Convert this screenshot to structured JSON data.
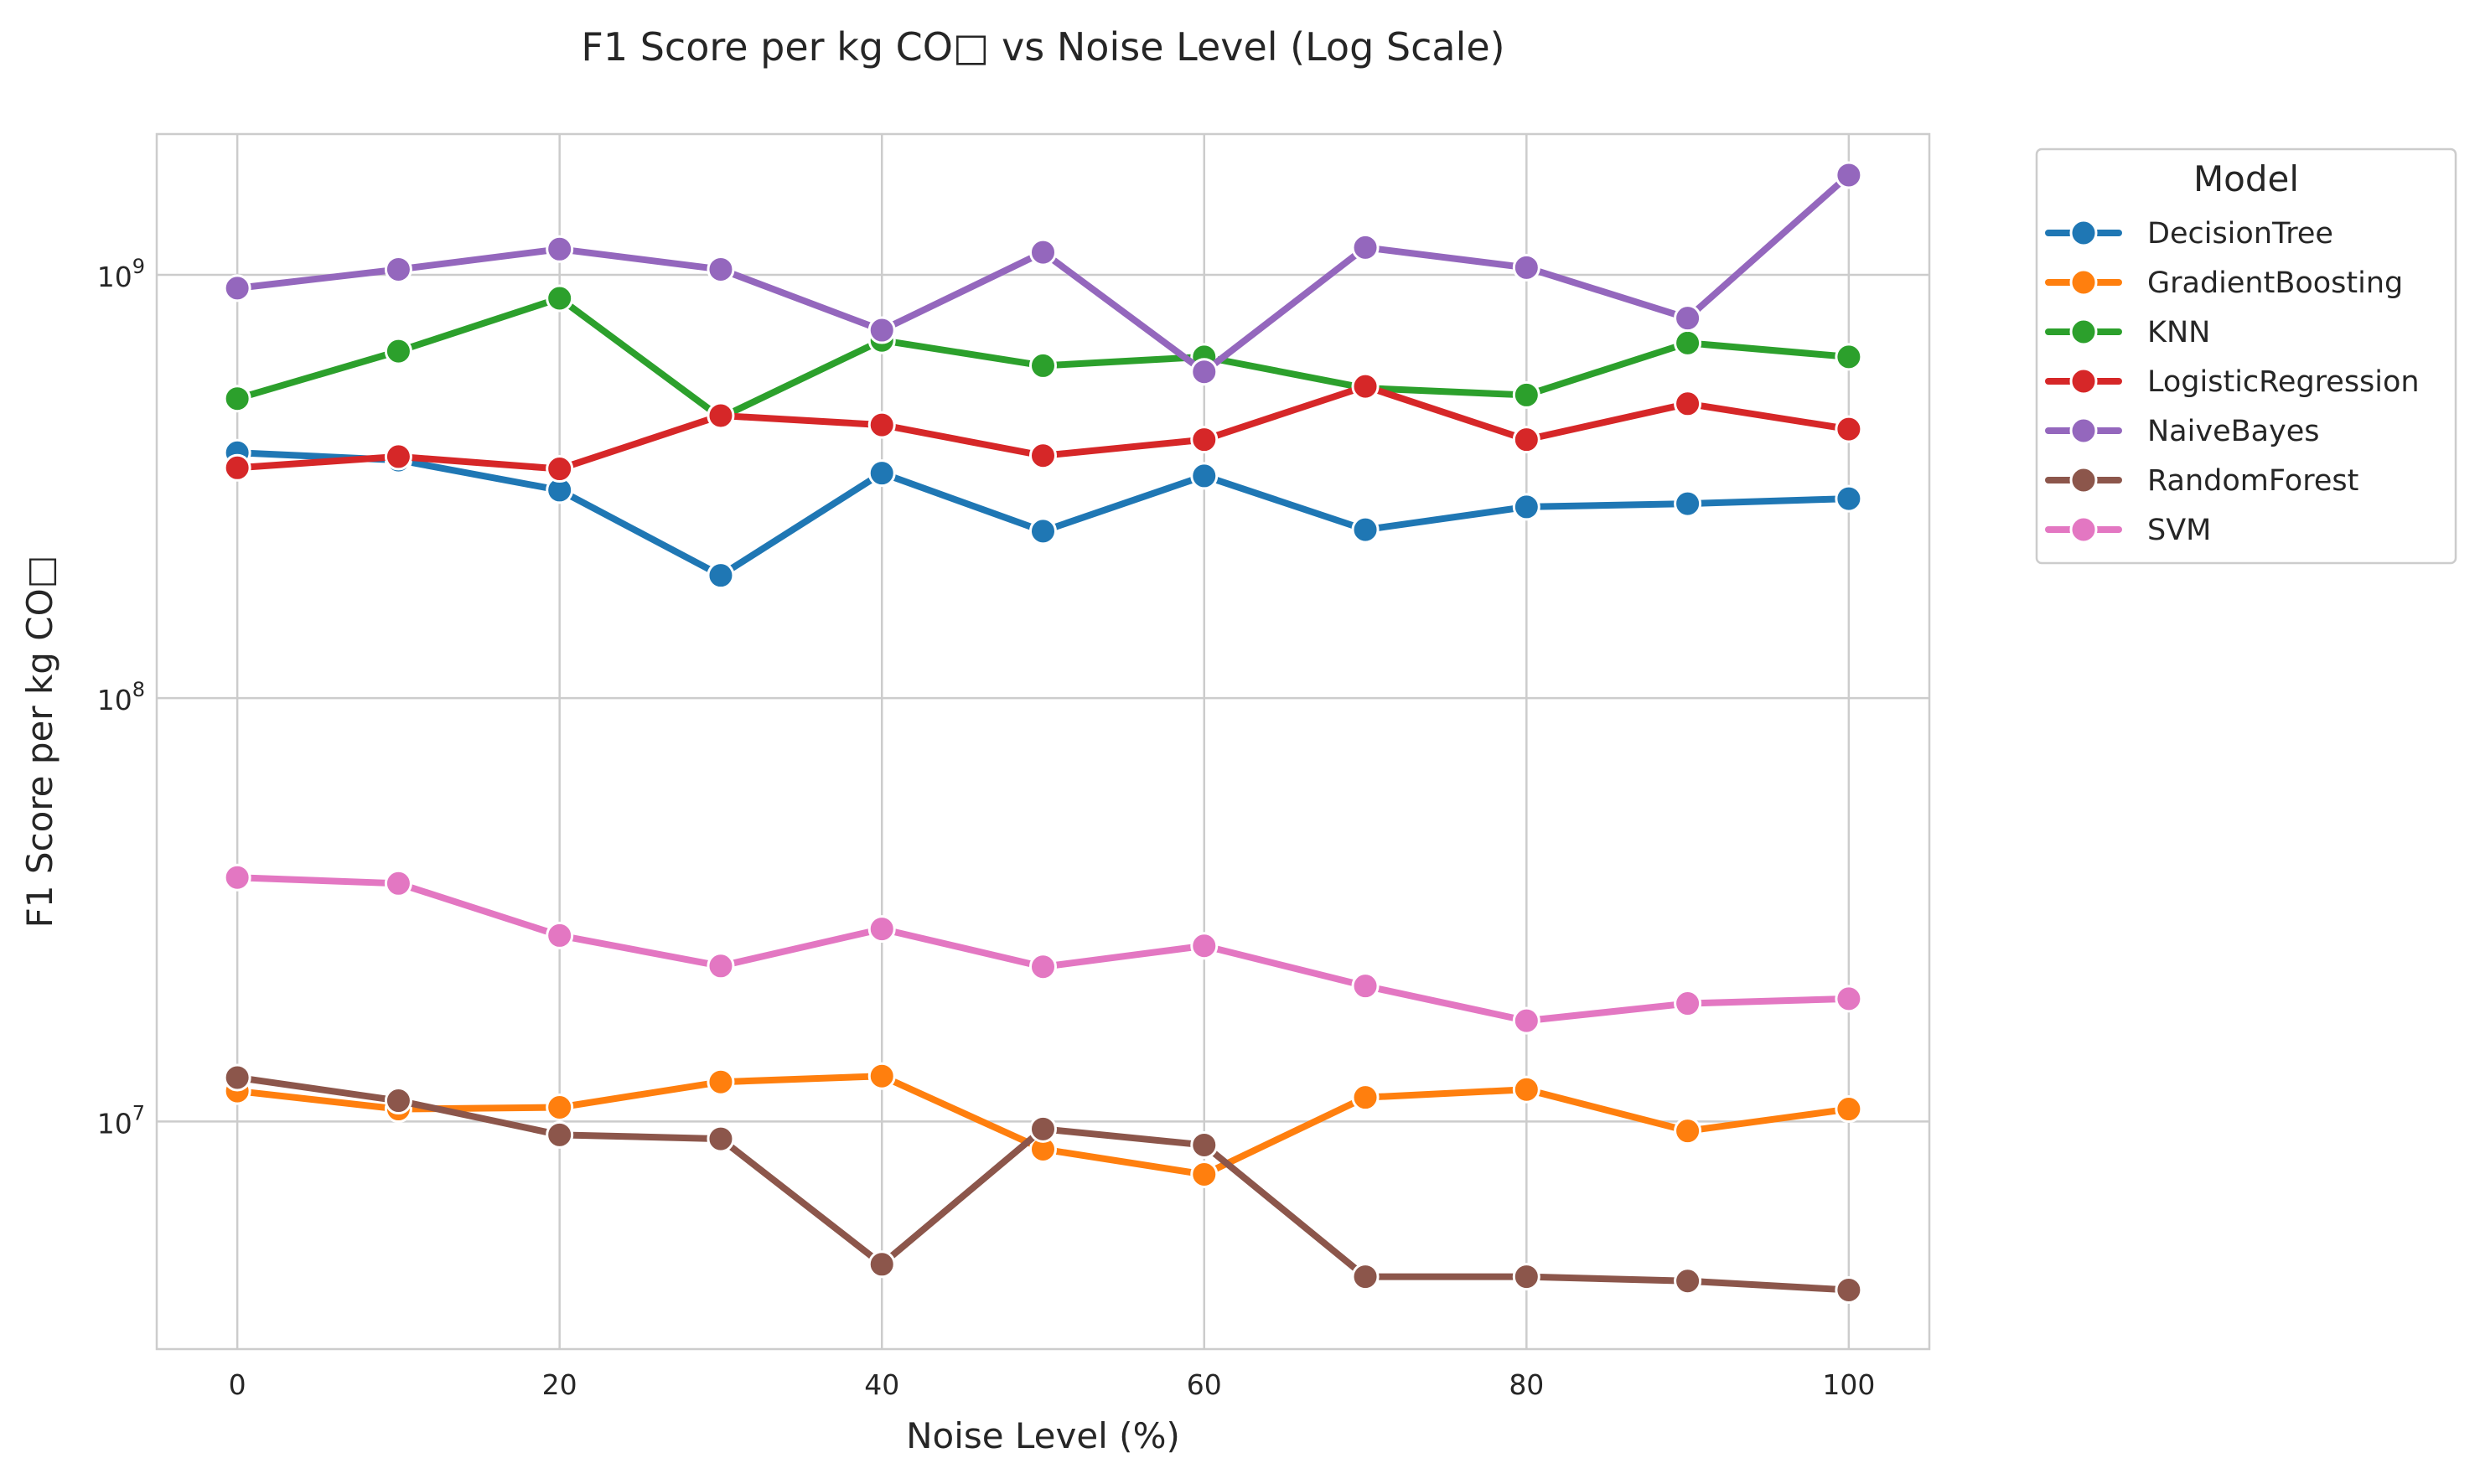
{
  "chart_data": {
    "type": "line",
    "title": "F1 Score per kg CO□ vs Noise Level (Log Scale)",
    "xlabel": "Noise Level (%)",
    "ylabel": "F1 Score per kg CO□",
    "y_scale": "log",
    "xlim": [
      -5,
      105
    ],
    "ylim": [
      2900000,
      2150000000
    ],
    "x_ticks": [
      0,
      20,
      40,
      60,
      80,
      100
    ],
    "y_ticks": [
      {
        "value": 10000000,
        "base": "10",
        "exp": "7"
      },
      {
        "value": 100000000,
        "base": "10",
        "exp": "8"
      },
      {
        "value": 1000000000,
        "base": "10",
        "exp": "9"
      }
    ],
    "grid": true,
    "legend": {
      "title": "Model",
      "placement": "outside-top-right"
    },
    "x": [
      0,
      10,
      20,
      30,
      40,
      50,
      60,
      70,
      80,
      90,
      100
    ],
    "series": [
      {
        "name": "DecisionTree",
        "color": "#1f77b4",
        "values": [
          380000000,
          365000000,
          310000000,
          195000000,
          340000000,
          248000000,
          335000000,
          250000000,
          283000000,
          288000000,
          296000000
        ]
      },
      {
        "name": "GradientBoosting",
        "color": "#ff7f0e",
        "values": [
          11800000,
          10700000,
          10800000,
          12400000,
          12800000,
          8600000,
          7500000,
          11400000,
          11900000,
          9500000,
          10700000
        ]
      },
      {
        "name": "KNN",
        "color": "#2ca02c",
        "values": [
          510000000,
          660000000,
          880000000,
          460000000,
          700000000,
          610000000,
          640000000,
          540000000,
          520000000,
          690000000,
          640000000
        ]
      },
      {
        "name": "LogisticRegression",
        "color": "#d62728",
        "values": [
          350000000,
          372000000,
          348000000,
          465000000,
          442000000,
          374000000,
          408000000,
          545000000,
          408000000,
          496000000,
          432000000
        ]
      },
      {
        "name": "NaiveBayes",
        "color": "#9467bd",
        "values": [
          930000000,
          1030000000,
          1150000000,
          1030000000,
          740000000,
          1130000000,
          590000000,
          1160000000,
          1040000000,
          790000000,
          1720000000
        ]
      },
      {
        "name": "RandomForest",
        "color": "#8c564b",
        "values": [
          12700000,
          11200000,
          9300000,
          9100000,
          4600000,
          9600000,
          8800000,
          4300000,
          4300000,
          4200000,
          4000000
        ]
      },
      {
        "name": "SVM",
        "color": "#e377c2",
        "values": [
          37700000,
          36500000,
          27500000,
          23300000,
          28500000,
          23200000,
          26000000,
          20900000,
          17300000,
          19000000,
          19500000
        ]
      }
    ]
  }
}
